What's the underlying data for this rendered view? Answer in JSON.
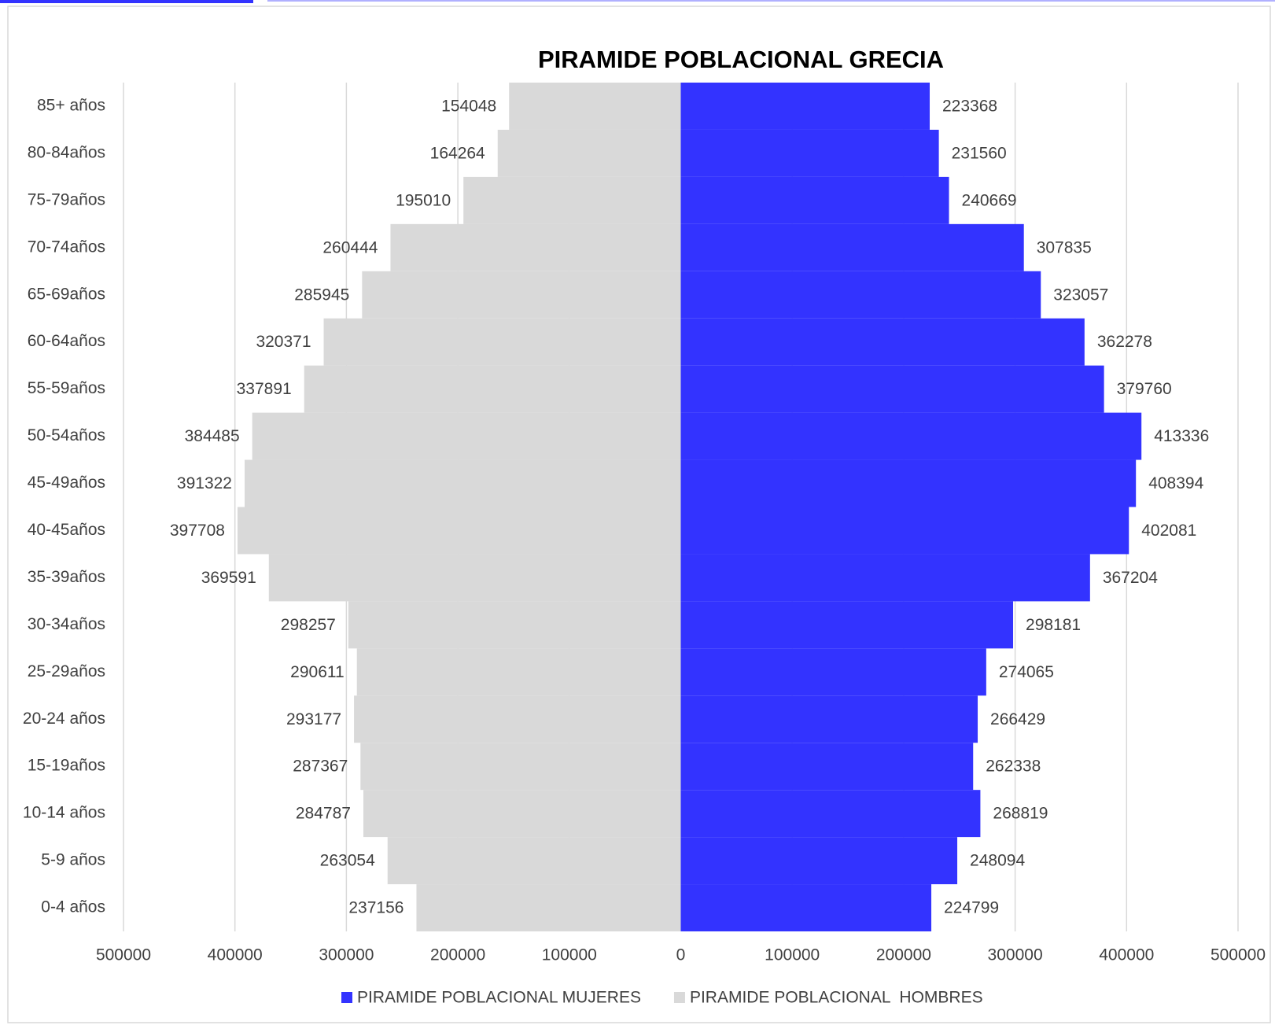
{
  "chart_data": {
    "type": "bar",
    "title": "PIRAMIDE POBLACIONAL GRECIA",
    "categories": [
      "85+ años",
      "80-84años",
      "75-79años",
      "70-74años",
      "65-69años",
      "60-64años",
      "55-59años",
      "50-54años",
      "45-49años",
      "40-45años",
      "35-39años",
      "30-34años",
      "25-29años",
      "20-24 años",
      "15-19años",
      "10-14 años",
      "5-9 años",
      "0-4 años"
    ],
    "series": [
      {
        "name": "PIRAMIDE POBLACIONAL MUJERES",
        "color": "#3333ff",
        "values": [
          223368,
          231560,
          240669,
          307835,
          323057,
          362278,
          379760,
          413336,
          408394,
          402081,
          367204,
          298181,
          274065,
          266429,
          262338,
          268819,
          248094,
          224799
        ]
      },
      {
        "name": "PIRAMIDE POBLACIONAL  HOMBRES",
        "color": "#d9d9d9",
        "values": [
          -154048,
          -164264,
          -195010,
          -260444,
          -285945,
          -320371,
          -337891,
          -384485,
          -391322,
          -397708,
          -369591,
          -298257,
          -290611,
          -293177,
          -287367,
          -284787,
          -263054,
          -237156
        ],
        "value_labels": [
          "154048",
          "164264",
          "195010",
          "260444",
          "285945",
          "320371",
          "337891",
          "384485",
          "391322",
          "397708",
          "369591",
          "298257",
          "290611",
          "293177",
          "287367",
          "284787",
          "263054",
          "237156"
        ]
      }
    ],
    "xlim": [
      -500000,
      500000
    ],
    "xticks": [
      {
        "value": -500000,
        "label": "500000"
      },
      {
        "value": -400000,
        "label": "400000"
      },
      {
        "value": -300000,
        "label": "300000"
      },
      {
        "value": -200000,
        "label": "200000"
      },
      {
        "value": -100000,
        "label": "100000"
      },
      0,
      100000,
      200000,
      300000,
      400000,
      500000
    ],
    "grid": true,
    "legend": "bottom"
  }
}
